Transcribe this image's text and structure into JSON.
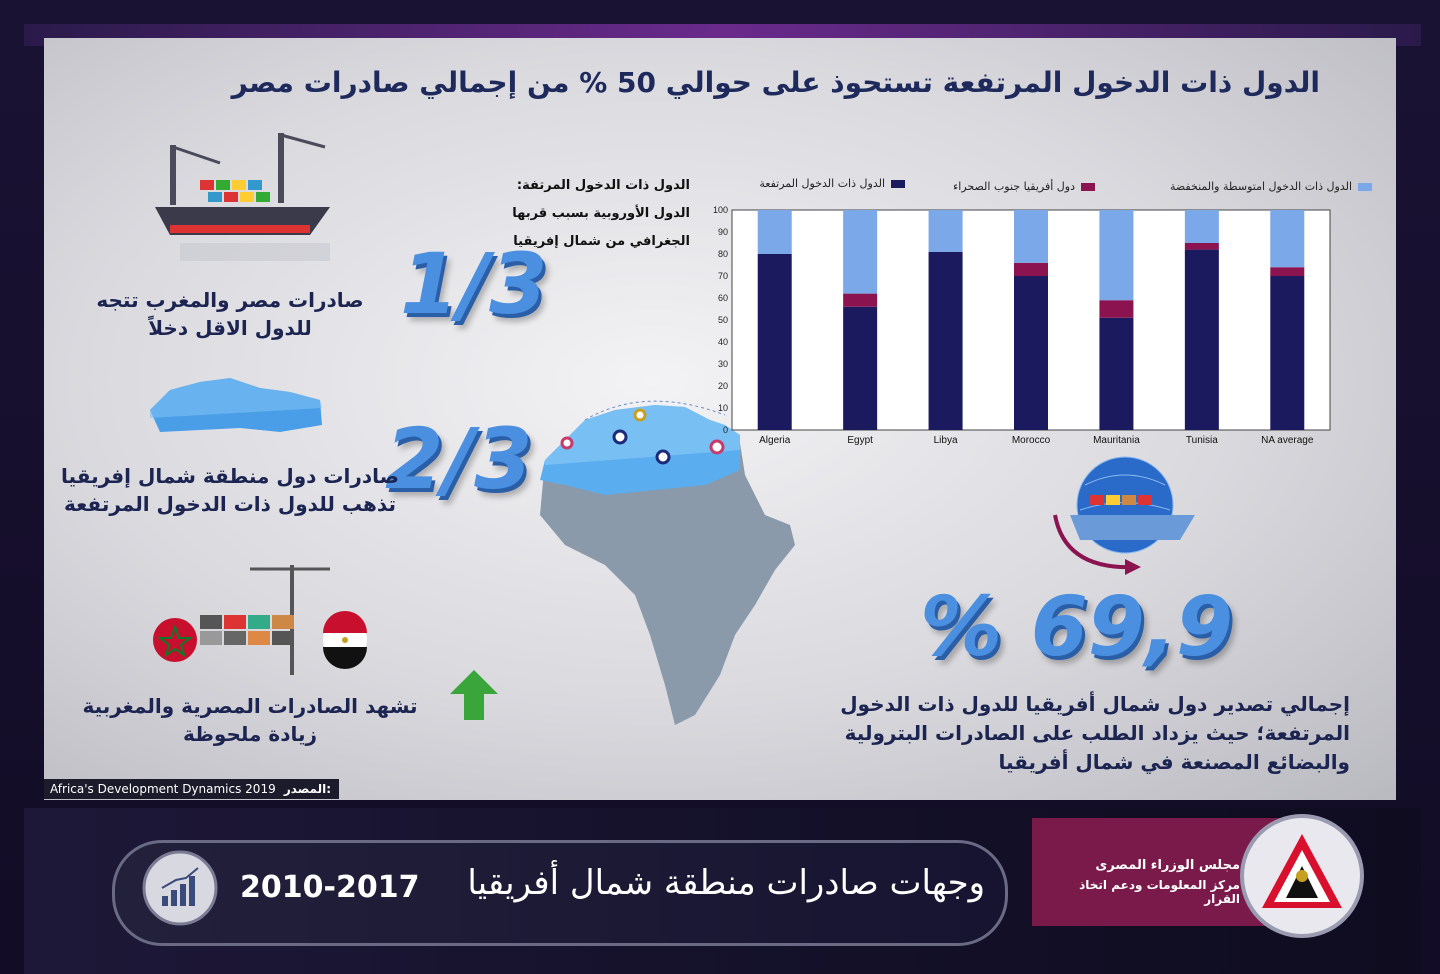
{
  "title": "الدول ذات الدخول المرتفعة تستحوذ على حوالي 50 % من إجمالي صادرات مصر",
  "left_blocks": [
    {
      "fraction": "1/3",
      "text": "صادرات مصر والمغرب تتجه للدول الاقل دخلاً"
    },
    {
      "fraction": "2/3",
      "text": "صادرات دول منطقة شمال إفريقيا تذهب للدول ذات الدخول المرتفعة"
    },
    {
      "fraction": "",
      "text": "تشهد الصادرات المصرية والمغربية زيادة ملحوظة"
    }
  ],
  "note": {
    "line1": "الدول ذات الدخول المرتفة:",
    "line2": "الدول الأوروبية بسبب قربها",
    "line3": "الجغرافي من شمال إفريقيا"
  },
  "big_percent": "% 69,9",
  "big_percent_text": "إجمالي تصدير دول شمال أفريقيا للدول ذات الدخول المرتفعة؛ حيث يزداد الطلب على الصادرات البترولية والبضائع المصنعة في شمال أفريقيا",
  "source": {
    "label": "المصدر:",
    "value": "Africa's Development Dynamics 2019"
  },
  "footer": {
    "title": "وجهات صادرات منطقة شمال أفريقيا",
    "years": "2010-2017",
    "org_line1": "مجلس الوزراء المصرى",
    "org_line2": "مركز المعلومات ودعم اتخاذ القرار"
  },
  "colors": {
    "high": "#1c1a5e",
    "ssa": "#8b1450",
    "lmi": "#7aa8e8"
  },
  "chart_data": {
    "type": "bar",
    "stacked": true,
    "categories": [
      "Algeria",
      "Egypt",
      "Libya",
      "Morocco",
      "Mauritania",
      "Tunisia",
      "NA average"
    ],
    "series": [
      {
        "name": "الدول ذات الدخول المرتفعة",
        "values": [
          80,
          56,
          81,
          70,
          51,
          82,
          70
        ]
      },
      {
        "name": "دول أفريقيا جنوب الصحراء",
        "values": [
          0,
          6,
          0,
          6,
          8,
          3,
          4
        ]
      },
      {
        "name": "الدول ذات الدخول امتوسطة والمنخفضة",
        "values": [
          20,
          38,
          19,
          24,
          41,
          15,
          26
        ]
      }
    ],
    "yticks": [
      "0",
      "10",
      "20",
      "30",
      "40",
      "50",
      "60",
      "70",
      "80",
      "90",
      "100"
    ],
    "ylim": [
      0,
      100
    ],
    "legend": "top"
  }
}
